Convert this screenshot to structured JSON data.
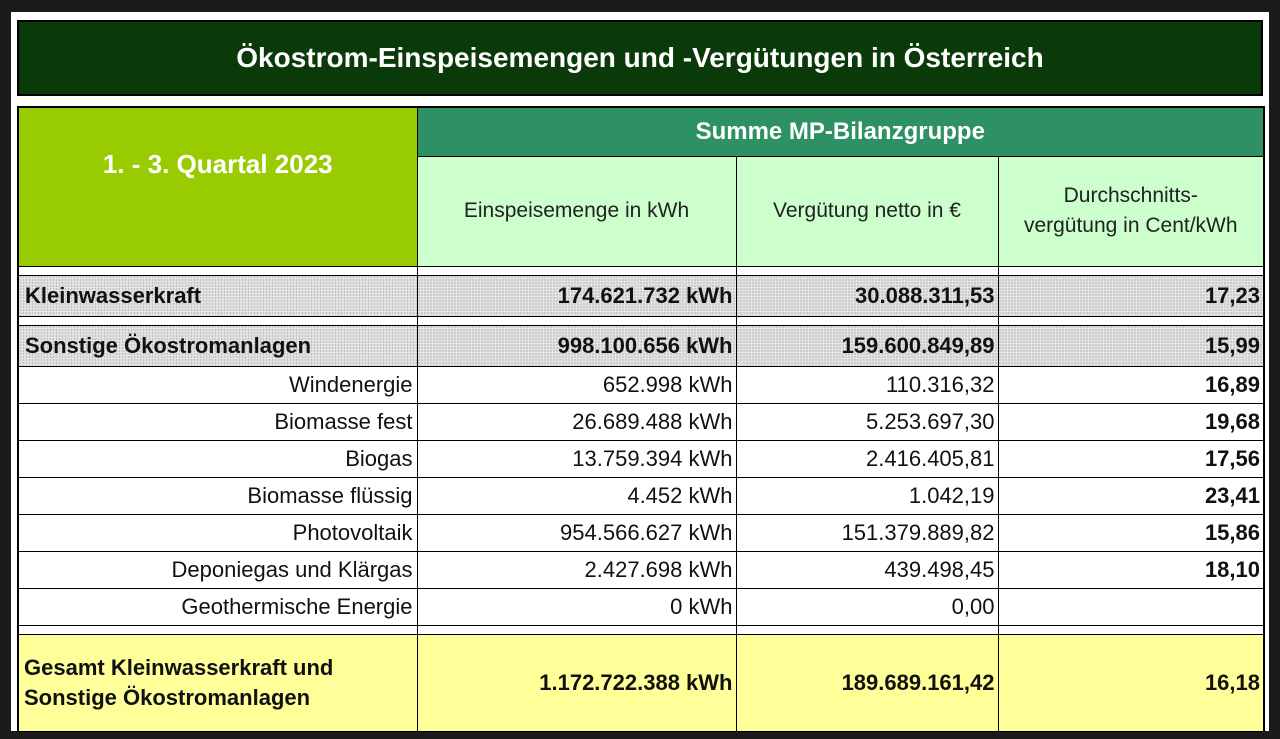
{
  "title": "Ökostrom-Einspeisemengen und -Vergütungen in Österreich",
  "period": "1. - 3. Quartal 2023",
  "group_header": "Summe MP-Bilanzgruppe",
  "columns": {
    "feed_in": "Einspeisemenge in kWh",
    "payment": "Vergütung netto in €",
    "average_line1": "Durchschnitts-",
    "average_line2": "vergütung in Cent/kWh"
  },
  "kleinwasserkraft": {
    "label": "Kleinwasserkraft",
    "feed_in": "174.621.732 kWh",
    "payment": "30.088.311,53",
    "average": "17,23"
  },
  "sonstige": {
    "label": "Sonstige Ökostromanlagen",
    "feed_in": "998.100.656 kWh",
    "payment": "159.600.849,89",
    "average": "15,99"
  },
  "rows": [
    {
      "label": "Windenergie",
      "feed_in": "652.998 kWh",
      "payment": "110.316,32",
      "average": "16,89"
    },
    {
      "label": "Biomasse fest",
      "feed_in": "26.689.488 kWh",
      "payment": "5.253.697,30",
      "average": "19,68"
    },
    {
      "label": "Biogas",
      "feed_in": "13.759.394 kWh",
      "payment": "2.416.405,81",
      "average": "17,56"
    },
    {
      "label": "Biomasse flüssig",
      "feed_in": "4.452 kWh",
      "payment": "1.042,19",
      "average": "23,41"
    },
    {
      "label": "Photovoltaik",
      "feed_in": "954.566.627 kWh",
      "payment": "151.379.889,82",
      "average": "15,86"
    },
    {
      "label": "Deponiegas und Klärgas",
      "feed_in": "2.427.698 kWh",
      "payment": "439.498,45",
      "average": "18,10"
    },
    {
      "label": "Geothermische Energie",
      "feed_in": "0 kWh",
      "payment": "0,00",
      "average": ""
    }
  ],
  "total": {
    "label_line1": "Gesamt Kleinwasserkraft und",
    "label_line2": "Sonstige Ökostromanlagen",
    "feed_in": "1.172.722.388 kWh",
    "payment": "189.689.161,42",
    "average": "16,18"
  },
  "colors": {
    "title_bg": "#0a3a0a",
    "period_bg": "#99cc00",
    "group_header_bg": "#2e9164",
    "column_header_bg": "#ccffcc",
    "total_bg": "#ffff99"
  }
}
